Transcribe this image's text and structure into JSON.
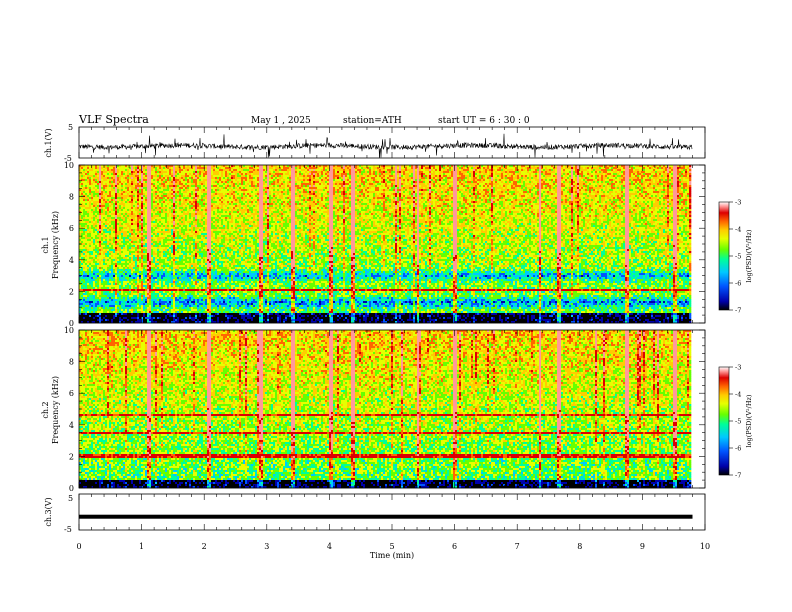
{
  "header": {
    "title": "VLF  Spectra",
    "date": "May 1  , 2025",
    "station": "station=ATH",
    "start_ut": "start  UT  =   6  : 30 : 0"
  },
  "colors": {
    "colormap": [
      "#000000",
      "#0000aa",
      "#0055ff",
      "#00c8ff",
      "#00ff99",
      "#66ff00",
      "#e6ff00",
      "#ffcc00",
      "#ff6600",
      "#dd0000",
      "#ff9999",
      "#ffffff"
    ],
    "waveform": "#000000",
    "axes": "#000000",
    "background": "#ffffff"
  },
  "chart_data": [
    {
      "type": "line",
      "panel": "ch1-waveform",
      "ylabel": "ch.1(V)",
      "ylim": [
        -5,
        5
      ],
      "yticks": [
        5,
        -5
      ],
      "xlim": [
        0,
        10
      ],
      "baseline": -1.2,
      "note_series": "noisy broadband VLF waveform, mostly between -3 and 1 V"
    },
    {
      "type": "heatmap",
      "panel": "ch1-spectrogram",
      "ylabel": "Frequency  (kHz)",
      "ylabel_prefix": "ch.1",
      "ylim": [
        0,
        10
      ],
      "yticks": [
        0,
        2,
        4,
        6,
        8,
        10
      ],
      "xlim": [
        0,
        10
      ],
      "data_extent_x": 9.8,
      "colorbar": {
        "label": "log(PSD)(V²/Hz)",
        "range": [
          -7,
          -3
        ],
        "ticks": [
          -3,
          -4,
          -5,
          -6,
          -7
        ]
      },
      "features_khz": [
        {
          "f": 1.3,
          "kind": "blue-band"
        },
        {
          "f": 2.1,
          "kind": "orange-line"
        },
        {
          "f": 3.0,
          "kind": "blue-band"
        },
        {
          "f": 0.3,
          "kind": "dark-band"
        }
      ],
      "sferic_times_min": [
        1.1,
        2.07,
        2.9,
        3.4,
        4.0,
        4.35,
        5.4,
        6.0,
        7.35,
        7.65,
        8.75,
        9.5
      ]
    },
    {
      "type": "heatmap",
      "panel": "ch2-spectrogram",
      "ylabel": "Frequency  (kHz)",
      "ylabel_prefix": "ch.2",
      "ylim": [
        0,
        10
      ],
      "yticks": [
        0,
        2,
        4,
        6,
        8,
        10
      ],
      "xlim": [
        0,
        10
      ],
      "data_extent_x": 9.8,
      "colorbar": {
        "label": "log(PSD)(V²/Hz)",
        "range": [
          -7,
          -3
        ],
        "ticks": [
          -3,
          -4,
          -5,
          -6,
          -7
        ]
      },
      "features_khz": [
        {
          "f": 2.0,
          "kind": "orange-line"
        },
        {
          "f": 3.5,
          "kind": "orange-line"
        },
        {
          "f": 4.6,
          "kind": "orange-line"
        },
        {
          "f": 0.2,
          "kind": "dark-band"
        }
      ],
      "sferic_times_min": [
        1.1,
        2.07,
        2.9,
        3.4,
        4.0,
        4.35,
        5.4,
        6.0,
        7.35,
        7.65,
        8.75,
        9.5
      ]
    },
    {
      "type": "line",
      "panel": "ch3-waveform",
      "ylabel": "ch.3(V)",
      "ylim": [
        -5,
        5
      ],
      "yticks": [
        5,
        -5
      ],
      "xlim": [
        0,
        10
      ],
      "baseline": -1.3,
      "note_series": "near-constant trace at about -1.3 V"
    }
  ],
  "xaxis": {
    "label": "Time  (min)",
    "ticks": [
      0,
      1,
      2,
      3,
      4,
      5,
      6,
      7,
      8,
      9,
      10
    ]
  }
}
